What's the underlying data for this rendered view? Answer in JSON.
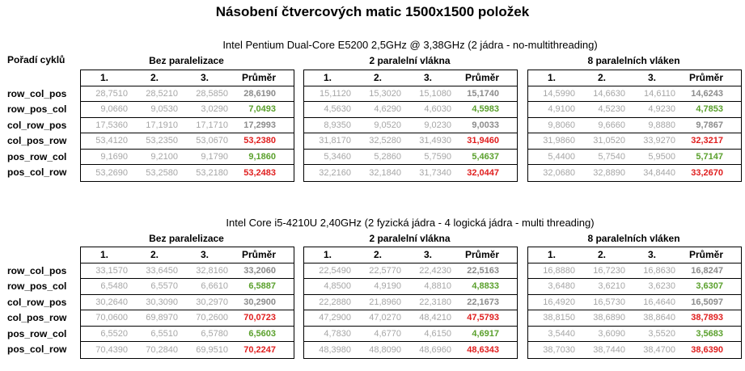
{
  "title": "Násobení čtvercových matic 1500x1500 položek",
  "row_header": "Pořadí cyklů",
  "row_labels": [
    "row_col_pos",
    "row_pos_col",
    "col_row_pos",
    "col_pos_row",
    "pos_row_col",
    "pos_col_row"
  ],
  "col_headers": [
    "1.",
    "2.",
    "3.",
    "Průměr"
  ],
  "groups": [
    "Bez paralelizace",
    "2 paralelní vlákna",
    "8 paralelních vláken"
  ],
  "colors": {
    "good": "#5aa02c",
    "bad": "#e01e1e",
    "neutral": "#a6a6a6"
  },
  "sections": [
    {
      "cpu": "Intel Pentium Dual-Core E5200 2,5GHz @ 3,38GHz (2 jádra - no-multithreading)",
      "tables": [
        [
          [
            "28,7510",
            "28,5210",
            "28,5850",
            "28,6190",
            "mid"
          ],
          [
            "9,0660",
            "9,0530",
            "3,0290",
            "7,0493",
            "good"
          ],
          [
            "17,5360",
            "17,1910",
            "17,1710",
            "17,2993",
            "mid"
          ],
          [
            "53,4120",
            "53,2350",
            "53,0670",
            "53,2380",
            "bad"
          ],
          [
            "9,1690",
            "9,2100",
            "9,1790",
            "9,1860",
            "good"
          ],
          [
            "53,2690",
            "53,2580",
            "53,2180",
            "53,2483",
            "bad"
          ]
        ],
        [
          [
            "15,1120",
            "15,3020",
            "15,1080",
            "15,1740",
            "mid"
          ],
          [
            "4,5630",
            "4,6290",
            "4,6030",
            "4,5983",
            "good"
          ],
          [
            "8,9350",
            "9,0520",
            "9,0230",
            "9,0033",
            "mid"
          ],
          [
            "31,8170",
            "32,5280",
            "31,4930",
            "31,9460",
            "bad"
          ],
          [
            "5,3460",
            "5,2860",
            "5,7590",
            "5,4637",
            "good"
          ],
          [
            "32,2160",
            "32,1840",
            "31,7340",
            "32,0447",
            "bad"
          ]
        ],
        [
          [
            "14,5990",
            "14,6630",
            "14,6110",
            "14,6243",
            "mid"
          ],
          [
            "4,9100",
            "4,5230",
            "4,9230",
            "4,7853",
            "good"
          ],
          [
            "9,8060",
            "9,6660",
            "9,8880",
            "9,7867",
            "mid"
          ],
          [
            "31,9860",
            "31,0520",
            "33,9270",
            "32,3217",
            "bad"
          ],
          [
            "5,4400",
            "5,7540",
            "5,9500",
            "5,7147",
            "good"
          ],
          [
            "32,0680",
            "32,8890",
            "34,8440",
            "33,2670",
            "bad"
          ]
        ]
      ]
    },
    {
      "cpu": "Intel Core i5-4210U 2,40GHz (2 fyzická jádra - 4 logická jádra - multi threading)",
      "tables": [
        [
          [
            "33,1570",
            "33,6450",
            "32,8160",
            "33,2060",
            "mid"
          ],
          [
            "6,5480",
            "6,5570",
            "6,6610",
            "6,5887",
            "good"
          ],
          [
            "30,2640",
            "30,3090",
            "30,2970",
            "30,2900",
            "mid"
          ],
          [
            "70,0600",
            "69,8970",
            "70,2600",
            "70,0723",
            "bad"
          ],
          [
            "6,5520",
            "6,5510",
            "6,5780",
            "6,5603",
            "good"
          ],
          [
            "70,4390",
            "70,2840",
            "69,9510",
            "70,2247",
            "bad"
          ]
        ],
        [
          [
            "22,5490",
            "22,5770",
            "22,4230",
            "22,5163",
            "mid"
          ],
          [
            "4,8500",
            "4,9190",
            "4,8810",
            "4,8833",
            "good"
          ],
          [
            "22,2880",
            "21,8960",
            "22,3180",
            "22,1673",
            "mid"
          ],
          [
            "47,2900",
            "47,0270",
            "48,4210",
            "47,5793",
            "bad"
          ],
          [
            "4,7830",
            "4,6770",
            "4,6150",
            "4,6917",
            "good"
          ],
          [
            "48,3980",
            "48,8090",
            "48,6960",
            "48,6343",
            "bad"
          ]
        ],
        [
          [
            "16,8880",
            "16,7230",
            "16,8630",
            "16,8247",
            "mid"
          ],
          [
            "3,6480",
            "3,6210",
            "3,6230",
            "3,6307",
            "good"
          ],
          [
            "16,4920",
            "16,5730",
            "16,4640",
            "16,5097",
            "mid"
          ],
          [
            "38,8150",
            "38,6890",
            "38,8640",
            "38,7893",
            "bad"
          ],
          [
            "3,5440",
            "3,6090",
            "3,5520",
            "3,5683",
            "good"
          ],
          [
            "38,7030",
            "38,7440",
            "38,4700",
            "38,6390",
            "bad"
          ]
        ]
      ]
    }
  ]
}
